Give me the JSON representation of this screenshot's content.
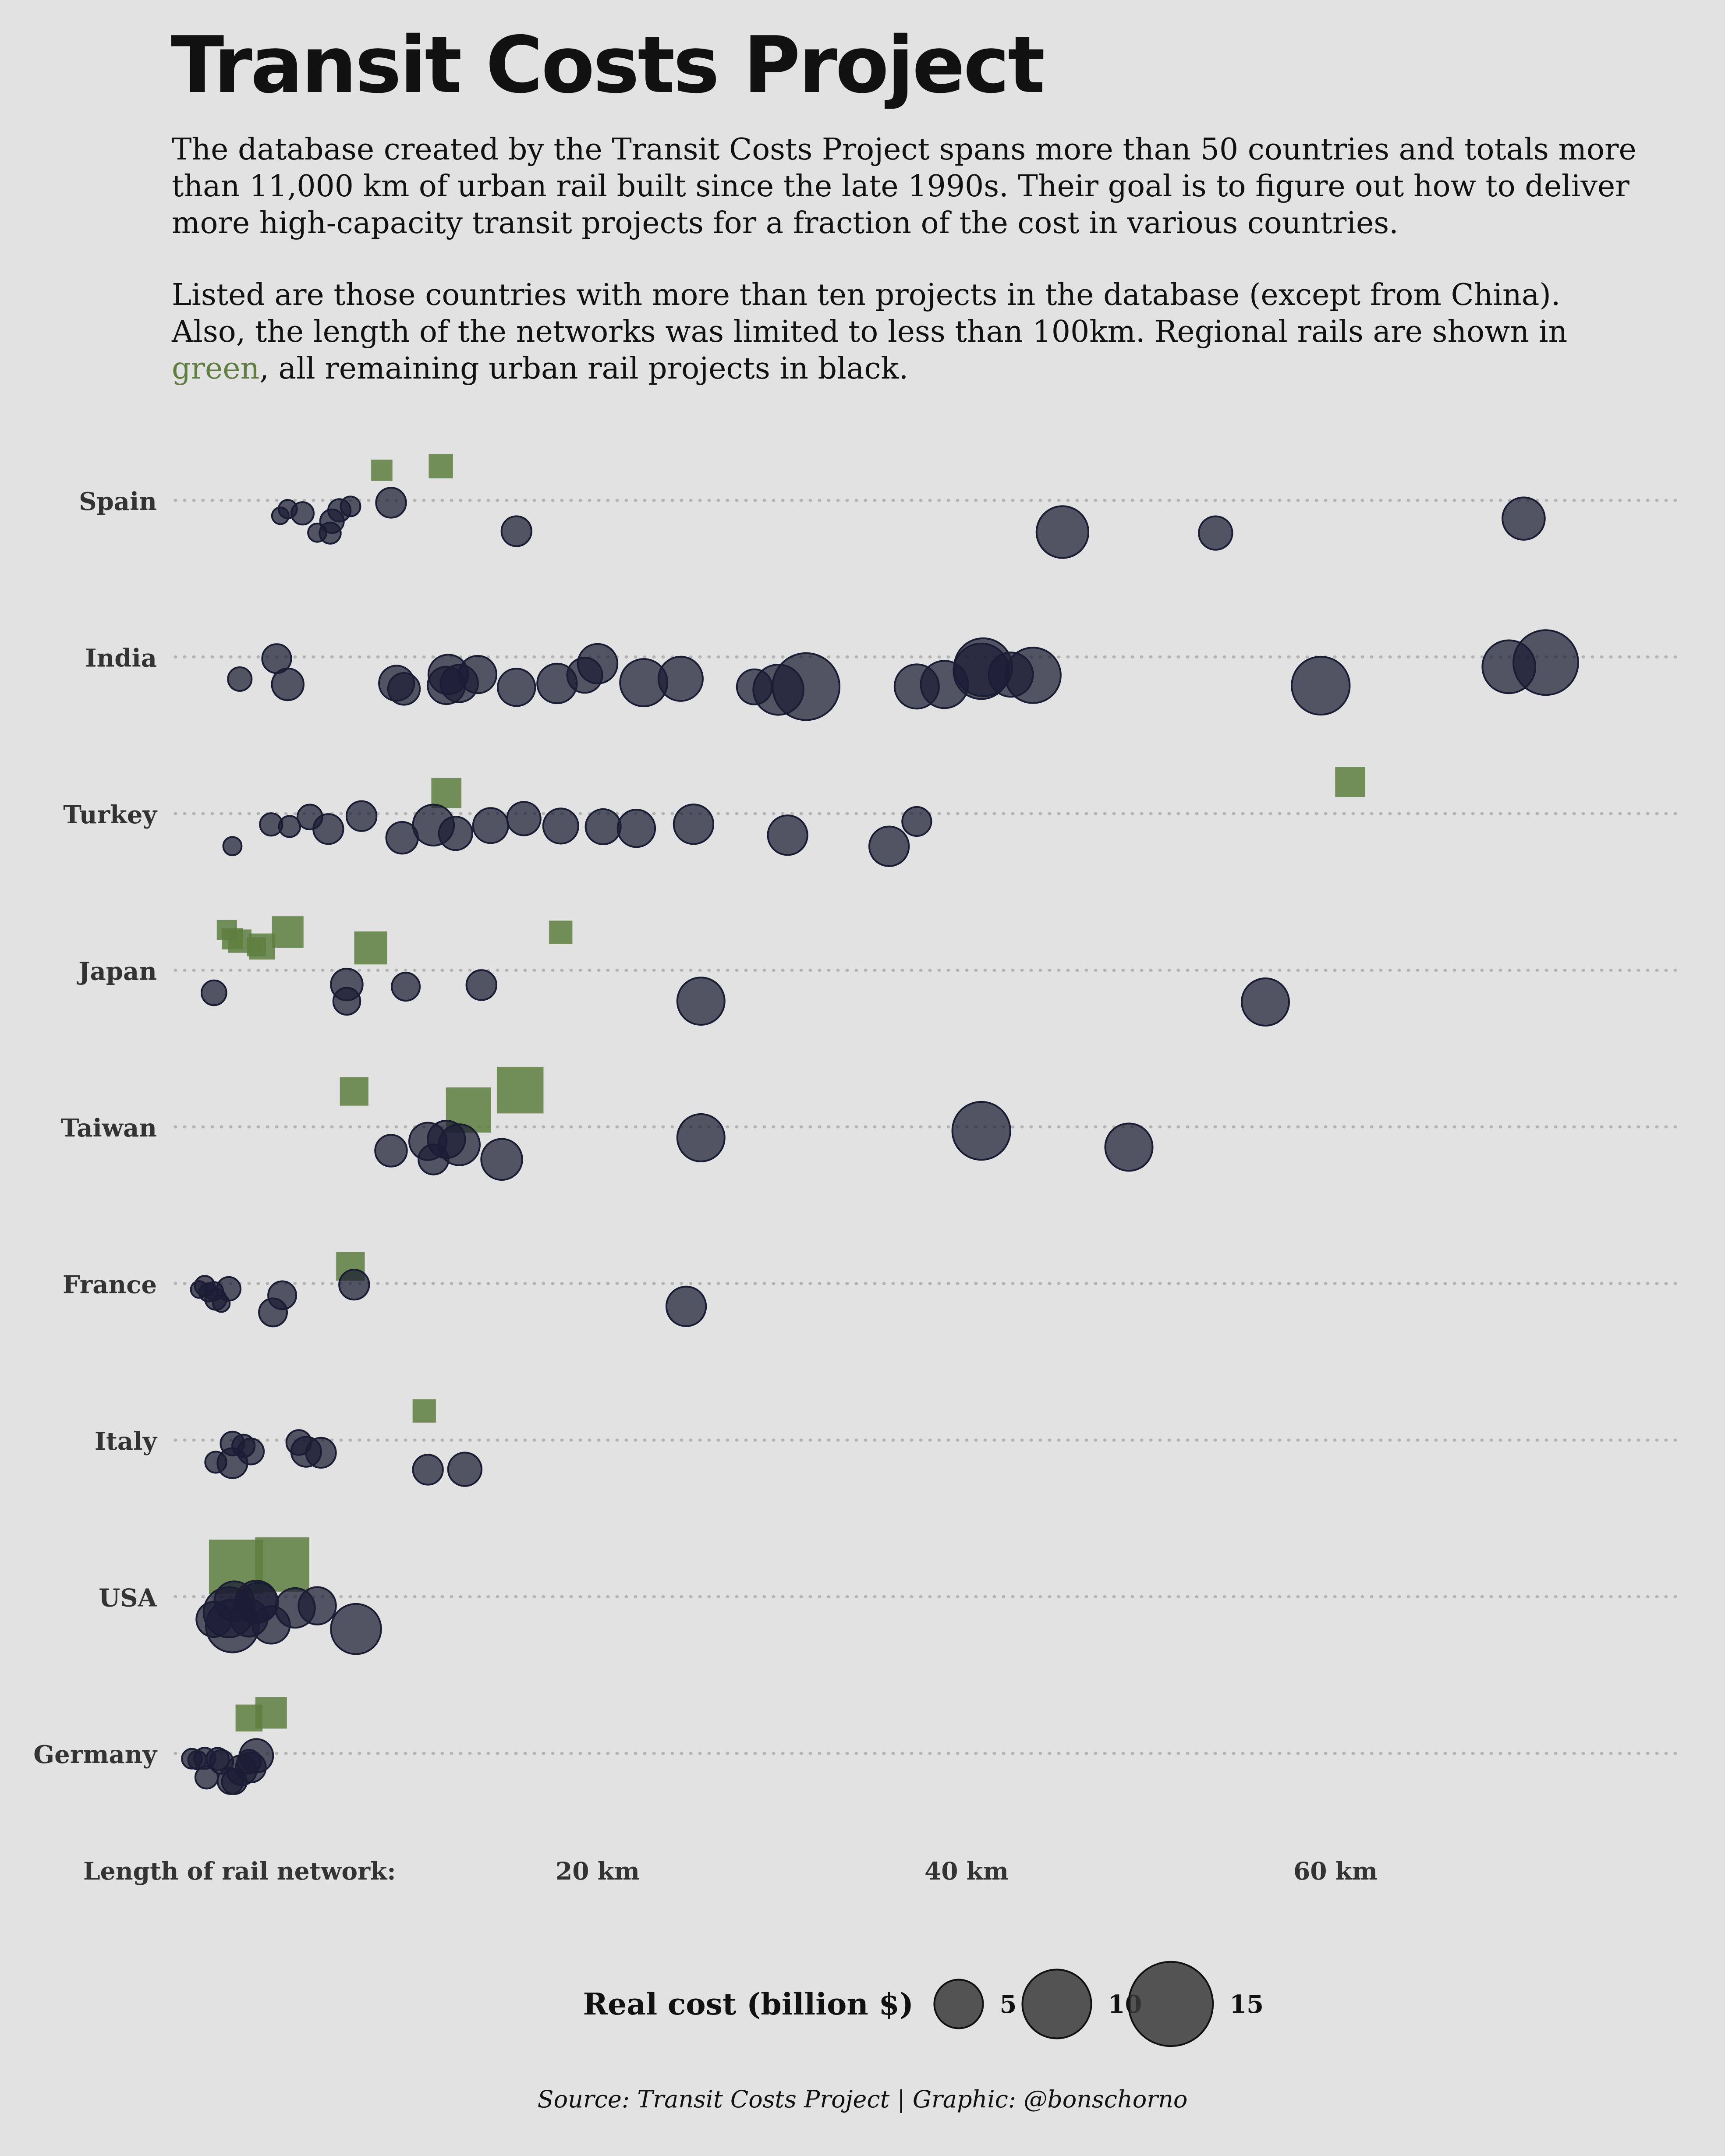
{
  "title": "Transit Costs Project",
  "intro": {
    "p1": "The database created by the Transit Costs Project spans more than 50 countries and totals more than 11,000 km of urban rail built since the late 1990s. Their goal is to figure out how to deliver more high-capacity transit projects for a fraction of the cost in various countries.",
    "p2_a": "Listed are those countries with more than ten projects in the database (except from China). Also, the length of the networks was limited to less than 100km. Regional rails are shown in",
    "p2_green": "green",
    "p2_b": ", all remaining urban rail projects in black."
  },
  "colors": {
    "background": "#e2e2e2",
    "urban": "#1a1d33",
    "regional": "#5e7f3f",
    "grid": "#b4b4b4"
  },
  "source": "Source: Transit Costs Project | Graphic: @bonschorno",
  "chart_data": {
    "type": "scatter",
    "xlabel": "Length of rail network:",
    "xticks": [
      20,
      40,
      60
    ],
    "xtick_labels": [
      "20 km",
      "40 km",
      "60 km"
    ],
    "xlim": [
      -17,
      82
    ],
    "countries": [
      "Spain",
      "India",
      "Turkey",
      "Japan",
      "Taiwan",
      "France",
      "Italy",
      "USA",
      "Germany"
    ],
    "series": [
      {
        "country": "Spain",
        "urban": [
          {
            "length": 2.8,
            "cost": 0.5
          },
          {
            "length": 3.2,
            "cost": 0.6
          },
          {
            "length": 4.0,
            "cost": 0.9
          },
          {
            "length": 4.8,
            "cost": 0.6
          },
          {
            "length": 5.5,
            "cost": 0.8
          },
          {
            "length": 6.0,
            "cost": 0.9
          },
          {
            "length": 5.6,
            "cost": 1.0
          },
          {
            "length": 6.6,
            "cost": 0.7
          },
          {
            "length": 8.8,
            "cost": 1.6
          },
          {
            "length": 15.6,
            "cost": 1.6
          },
          {
            "length": 45.2,
            "cost": 4.8
          },
          {
            "length": 53.5,
            "cost": 2.0
          },
          {
            "length": 70.2,
            "cost": 3.2
          }
        ],
        "regional": [
          {
            "length": 8.3,
            "cost": 1.0
          },
          {
            "length": 11.5,
            "cost": 1.3
          }
        ]
      },
      {
        "country": "India",
        "urban": [
          {
            "length": 0.6,
            "cost": 1.0
          },
          {
            "length": 2.6,
            "cost": 1.5
          },
          {
            "length": 3.2,
            "cost": 1.8
          },
          {
            "length": 9.1,
            "cost": 2.2
          },
          {
            "length": 9.5,
            "cost": 1.8
          },
          {
            "length": 11.8,
            "cost": 2.5
          },
          {
            "length": 11.9,
            "cost": 2.8
          },
          {
            "length": 12.5,
            "cost": 2.5
          },
          {
            "length": 13.5,
            "cost": 2.5
          },
          {
            "length": 15.6,
            "cost": 2.5
          },
          {
            "length": 17.8,
            "cost": 2.8
          },
          {
            "length": 19.3,
            "cost": 2.2
          },
          {
            "length": 20.0,
            "cost": 2.8
          },
          {
            "length": 22.5,
            "cost": 4.0
          },
          {
            "length": 24.5,
            "cost": 3.5
          },
          {
            "length": 28.5,
            "cost": 2.2
          },
          {
            "length": 29.8,
            "cost": 4.5
          },
          {
            "length": 31.3,
            "cost": 8.0
          },
          {
            "length": 37.3,
            "cost": 3.5
          },
          {
            "length": 38.8,
            "cost": 4.0
          },
          {
            "length": 40.8,
            "cost": 5.5
          },
          {
            "length": 40.9,
            "cost": 6.0
          },
          {
            "length": 42.4,
            "cost": 3.5
          },
          {
            "length": 43.6,
            "cost": 5.5
          },
          {
            "length": 59.2,
            "cost": 6.0
          },
          {
            "length": 69.4,
            "cost": 5.0
          },
          {
            "length": 71.4,
            "cost": 7.5
          }
        ],
        "regional": []
      },
      {
        "country": "Turkey",
        "urban": [
          {
            "length": 0.2,
            "cost": 0.6
          },
          {
            "length": 2.3,
            "cost": 0.9
          },
          {
            "length": 3.3,
            "cost": 0.8
          },
          {
            "length": 4.4,
            "cost": 1.1
          },
          {
            "length": 5.4,
            "cost": 1.6
          },
          {
            "length": 7.2,
            "cost": 1.6
          },
          {
            "length": 9.4,
            "cost": 1.8
          },
          {
            "length": 11.1,
            "cost": 3.0
          },
          {
            "length": 12.3,
            "cost": 2.0
          },
          {
            "length": 14.2,
            "cost": 2.2
          },
          {
            "length": 16.0,
            "cost": 2.0
          },
          {
            "length": 18.0,
            "cost": 2.2
          },
          {
            "length": 20.3,
            "cost": 2.2
          },
          {
            "length": 22.1,
            "cost": 2.5
          },
          {
            "length": 25.2,
            "cost": 2.8
          },
          {
            "length": 30.3,
            "cost": 2.8
          },
          {
            "length": 35.8,
            "cost": 2.8
          },
          {
            "length": 37.3,
            "cost": 1.5
          }
        ],
        "regional": [
          {
            "length": 11.8,
            "cost": 2.0
          },
          {
            "length": 60.8,
            "cost": 2.0
          }
        ]
      },
      {
        "country": "Japan",
        "urban": [
          {
            "length": -0.8,
            "cost": 1.1
          },
          {
            "length": 6.4,
            "cost": 1.8
          },
          {
            "length": 6.4,
            "cost": 1.3
          },
          {
            "length": 9.6,
            "cost": 1.4
          },
          {
            "length": 13.7,
            "cost": 1.6
          },
          {
            "length": 25.6,
            "cost": 4.0
          },
          {
            "length": 56.2,
            "cost": 4.0
          }
        ],
        "regional": [
          {
            "length": -0.1,
            "cost": 0.9
          },
          {
            "length": 0.2,
            "cost": 1.0
          },
          {
            "length": 0.6,
            "cost": 1.2
          },
          {
            "length": 1.5,
            "cost": 0.8
          },
          {
            "length": 1.8,
            "cost": 1.5
          },
          {
            "length": 3.2,
            "cost": 2.2
          },
          {
            "length": 7.7,
            "cost": 2.4
          },
          {
            "length": 18.0,
            "cost": 1.2
          }
        ]
      },
      {
        "country": "Taiwan",
        "urban": [
          {
            "length": 8.8,
            "cost": 1.8
          },
          {
            "length": 10.8,
            "cost": 2.5
          },
          {
            "length": 11.1,
            "cost": 1.6
          },
          {
            "length": 11.8,
            "cost": 2.5
          },
          {
            "length": 12.5,
            "cost": 3.0
          },
          {
            "length": 14.8,
            "cost": 3.0
          },
          {
            "length": 25.6,
            "cost": 4.0
          },
          {
            "length": 40.8,
            "cost": 6.0
          },
          {
            "length": 48.8,
            "cost": 4.0
          }
        ],
        "regional": [
          {
            "length": 6.8,
            "cost": 1.8
          },
          {
            "length": 13.0,
            "cost": 4.5
          },
          {
            "length": 15.8,
            "cost": 4.8
          }
        ]
      },
      {
        "country": "France",
        "urban": [
          {
            "length": -1.6,
            "cost": 0.5
          },
          {
            "length": -1.3,
            "cost": 0.7
          },
          {
            "length": -1.1,
            "cost": 0.6
          },
          {
            "length": -0.8,
            "cost": 0.6
          },
          {
            "length": -0.4,
            "cost": 0.5
          },
          {
            "length": -0.7,
            "cost": 0.8
          },
          {
            "length": 0.0,
            "cost": 1.0
          },
          {
            "length": 2.4,
            "cost": 1.4
          },
          {
            "length": 2.9,
            "cost": 1.4
          },
          {
            "length": 6.8,
            "cost": 1.6
          },
          {
            "length": 24.8,
            "cost": 2.8
          }
        ],
        "regional": [
          {
            "length": 6.6,
            "cost": 1.8
          }
        ]
      },
      {
        "country": "Italy",
        "urban": [
          {
            "length": -0.7,
            "cost": 0.8
          },
          {
            "length": 0.2,
            "cost": 1.6
          },
          {
            "length": 0.2,
            "cost": 1.0
          },
          {
            "length": 0.8,
            "cost": 0.9
          },
          {
            "length": 1.2,
            "cost": 1.2
          },
          {
            "length": 3.8,
            "cost": 1.1
          },
          {
            "length": 4.2,
            "cost": 1.6
          },
          {
            "length": 5.0,
            "cost": 1.6
          },
          {
            "length": 10.8,
            "cost": 1.6
          },
          {
            "length": 12.8,
            "cost": 2.0
          }
        ],
        "regional": [
          {
            "length": 10.6,
            "cost": 1.2
          }
        ]
      },
      {
        "country": "USA",
        "urban": [
          {
            "length": -0.8,
            "cost": 2.2
          },
          {
            "length": 0.0,
            "cost": 4.5
          },
          {
            "length": 0.2,
            "cost": 5.0
          },
          {
            "length": 0.3,
            "cost": 2.8
          },
          {
            "length": 1.1,
            "cost": 2.5
          },
          {
            "length": 1.5,
            "cost": 3.2
          },
          {
            "length": 1.6,
            "cost": 2.8
          },
          {
            "length": 2.3,
            "cost": 2.5
          },
          {
            "length": 3.6,
            "cost": 2.8
          },
          {
            "length": 4.8,
            "cost": 2.5
          },
          {
            "length": 6.9,
            "cost": 4.5
          }
        ],
        "regional": [
          {
            "length": 0.4,
            "cost": 6.5
          },
          {
            "length": 2.9,
            "cost": 6.5
          }
        ]
      },
      {
        "country": "Germany",
        "urban": [
          {
            "length": -2.0,
            "cost": 0.7
          },
          {
            "length": -1.7,
            "cost": 0.6
          },
          {
            "length": -1.3,
            "cost": 0.8
          },
          {
            "length": -1.2,
            "cost": 0.9
          },
          {
            "length": -0.6,
            "cost": 0.9
          },
          {
            "length": -0.4,
            "cost": 1.0
          },
          {
            "length": 0.1,
            "cost": 1.2
          },
          {
            "length": 0.3,
            "cost": 1.1
          },
          {
            "length": 0.7,
            "cost": 1.6
          },
          {
            "length": 1.1,
            "cost": 1.0
          },
          {
            "length": 1.2,
            "cost": 1.6
          },
          {
            "length": 1.5,
            "cost": 2.0
          }
        ],
        "regional": [
          {
            "length": 1.1,
            "cost": 1.6
          },
          {
            "length": 2.3,
            "cost": 2.2
          }
        ]
      }
    ],
    "legend": {
      "title": "Real cost (billion $)",
      "sizes": [
        5,
        10,
        15
      ],
      "labels": [
        "5",
        "10",
        "15"
      ]
    }
  }
}
